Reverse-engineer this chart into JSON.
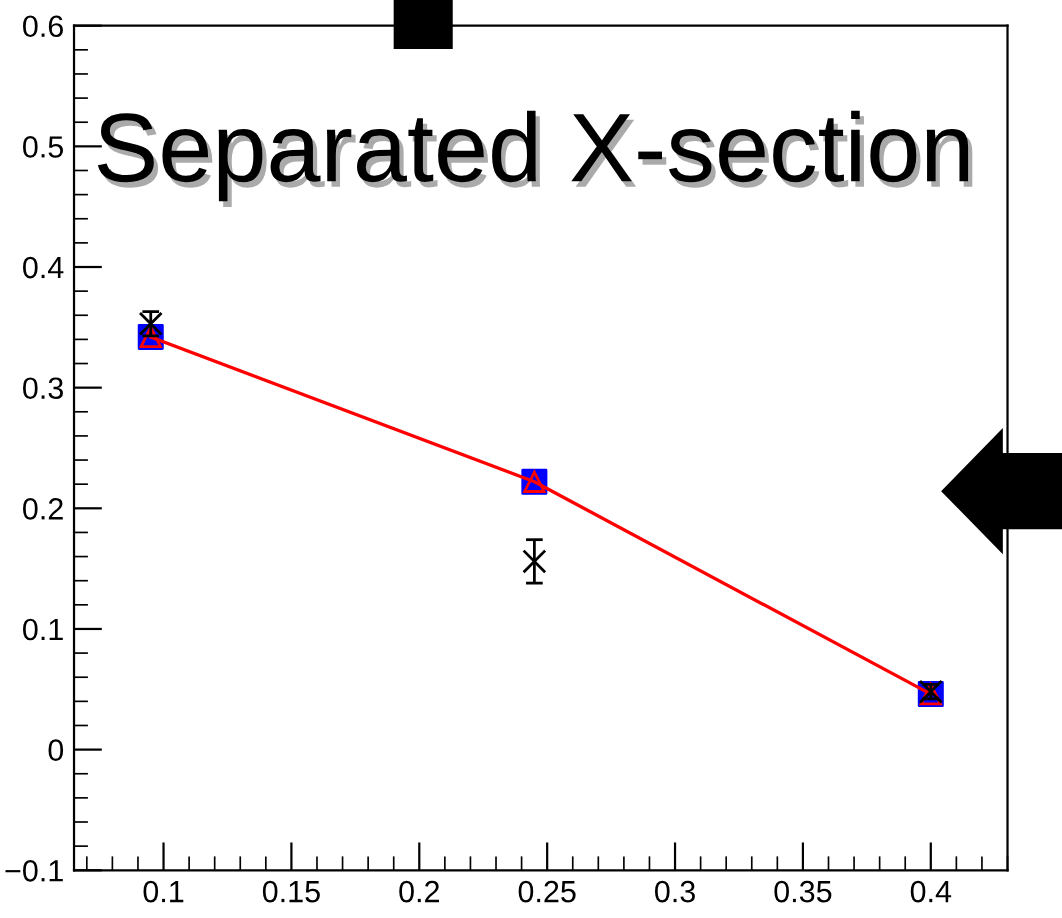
{
  "chart_data": {
    "type": "line",
    "title": "Separated X-section",
    "xlim": [
      0.065,
      0.43
    ],
    "xticks": [
      0.1,
      0.15,
      0.2,
      0.25,
      0.3,
      0.35,
      0.4
    ],
    "ylim": [
      -0.1,
      0.6
    ],
    "yticks": [
      {
        "value": -0.1,
        "label": "−0.1"
      },
      0,
      0.1,
      0.2,
      0.3,
      0.4,
      0.5,
      0.6
    ],
    "grid": false,
    "series": [
      {
        "type": "scatter",
        "color": "#0000ff",
        "marker": "square",
        "x": [
          0.095,
          0.245,
          0.4
        ],
        "values": [
          0.342,
          0.222,
          0.046
        ]
      },
      {
        "color": "#ff0000",
        "marker": "triangle",
        "line_style": "solid",
        "x": [
          0.095,
          0.245,
          0.4
        ],
        "values": [
          0.342,
          0.222,
          0.046
        ]
      },
      {
        "type": "scatter",
        "color": "#000000",
        "marker": "cross",
        "x": [
          0.095,
          0.245,
          0.4
        ],
        "values": [
          0.353,
          0.156,
          0.048
        ],
        "errors": [
          0.01,
          0.018,
          0.006
        ]
      }
    ]
  }
}
